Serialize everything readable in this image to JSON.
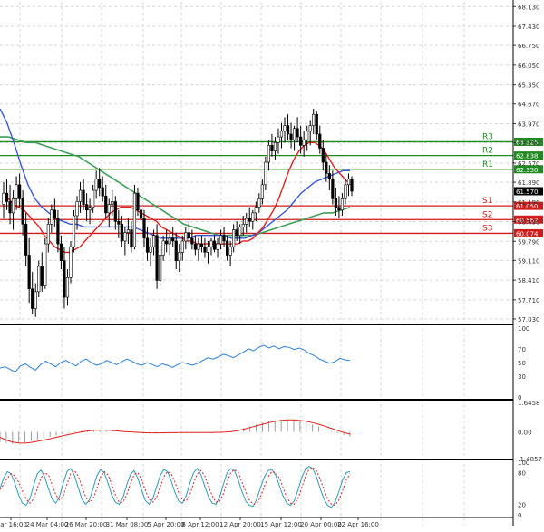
{
  "chart_data": {
    "type": "candlestick",
    "price_axis_labels": [
      "68.130",
      "67.430",
      "66.750",
      "66.050",
      "65.350",
      "64.670",
      "63.970",
      "63.290",
      "62.570",
      "61.890",
      "61.190",
      "60.490",
      "59.790",
      "59.110",
      "58.410",
      "57.710",
      "57.030"
    ],
    "time_labels": [
      "Mar 16:00",
      "24 Mar 04:00",
      "26 Mar 20:00",
      "31 Mar 08:00",
      "5 Apr 20:00",
      "8 Apr 12:00",
      "12 Apr 20:00",
      "15 Apr 12:00",
      "20 Apr 00:00",
      "22 Apr 16:00"
    ],
    "ylim": [
      56.9,
      68.3
    ],
    "current_price": {
      "label": "61.570",
      "value": 61.57
    },
    "levels": [
      {
        "name": "R3",
        "label": "63.326",
        "value": 63.326,
        "color": "#1f8a1f"
      },
      {
        "name": "R2",
        "label": "62.838",
        "value": 62.838,
        "color": "#1f8a1f"
      },
      {
        "name": "R1",
        "label": "62.350",
        "value": 62.35,
        "color": "#1f8a1f"
      },
      {
        "name": "S1",
        "label": "61.050",
        "value": 61.05,
        "color": "#d11a1a"
      },
      {
        "name": "S2",
        "label": "60.562",
        "value": 60.562,
        "color": "#d11a1a"
      },
      {
        "name": "S3",
        "label": "60.074",
        "value": 60.074,
        "color": "#d11a1a"
      }
    ],
    "candles_ohlc": [
      [
        61.1,
        61.9,
        60.6,
        61.5
      ],
      [
        61.5,
        62.0,
        60.9,
        61.2
      ],
      [
        61.2,
        61.8,
        60.4,
        60.8
      ],
      [
        60.8,
        61.6,
        60.2,
        61.3
      ],
      [
        61.3,
        62.1,
        60.9,
        61.8
      ],
      [
        61.8,
        62.2,
        61.0,
        61.3
      ],
      [
        61.3,
        61.6,
        60.0,
        60.4
      ],
      [
        60.4,
        60.8,
        58.9,
        59.3
      ],
      [
        59.3,
        59.9,
        57.6,
        58.1
      ],
      [
        58.1,
        58.7,
        57.2,
        57.4
      ],
      [
        57.4,
        58.3,
        57.1,
        58.0
      ],
      [
        58.0,
        59.1,
        57.8,
        58.9
      ],
      [
        58.9,
        59.4,
        58.0,
        58.2
      ],
      [
        58.2,
        59.9,
        58.1,
        59.7
      ],
      [
        59.7,
        60.6,
        59.4,
        60.4
      ],
      [
        60.4,
        61.1,
        60.1,
        60.9
      ],
      [
        60.9,
        61.3,
        60.3,
        60.6
      ],
      [
        60.6,
        60.9,
        59.4,
        59.7
      ],
      [
        59.7,
        60.0,
        58.8,
        59.1
      ],
      [
        59.1,
        59.6,
        57.4,
        57.8
      ],
      [
        57.8,
        58.8,
        57.5,
        58.5
      ],
      [
        58.5,
        59.8,
        58.3,
        59.6
      ],
      [
        59.6,
        60.9,
        59.4,
        60.7
      ],
      [
        60.7,
        61.4,
        60.2,
        61.2
      ],
      [
        61.2,
        61.9,
        60.8,
        61.6
      ],
      [
        61.6,
        62.0,
        60.9,
        61.1
      ],
      [
        61.1,
        61.5,
        60.5,
        60.9
      ],
      [
        60.9,
        61.3,
        60.4,
        61.0
      ],
      [
        61.0,
        61.8,
        60.8,
        61.6
      ],
      [
        61.6,
        62.3,
        61.3,
        62.0
      ],
      [
        62.0,
        62.4,
        61.4,
        61.7
      ],
      [
        61.7,
        62.1,
        61.2,
        61.4
      ],
      [
        61.4,
        61.8,
        60.6,
        60.8
      ],
      [
        60.8,
        61.3,
        60.3,
        61.1
      ],
      [
        61.1,
        61.6,
        60.7,
        61.2
      ],
      [
        61.2,
        61.4,
        60.2,
        60.5
      ],
      [
        60.5,
        60.9,
        59.9,
        60.4
      ],
      [
        60.4,
        60.7,
        59.6,
        59.8
      ],
      [
        59.8,
        60.3,
        59.3,
        60.1
      ],
      [
        60.1,
        60.6,
        59.7,
        60.2
      ],
      [
        60.2,
        60.5,
        59.4,
        59.6
      ],
      [
        59.6,
        61.8,
        59.5,
        61.5
      ],
      [
        61.5,
        61.7,
        60.7,
        60.9
      ],
      [
        60.9,
        61.3,
        60.4,
        60.6
      ],
      [
        60.6,
        60.9,
        59.6,
        59.9
      ],
      [
        59.9,
        60.3,
        59.1,
        59.4
      ],
      [
        59.4,
        59.9,
        58.9,
        59.6
      ],
      [
        59.6,
        60.2,
        59.3,
        60.0
      ],
      [
        60.0,
        60.4,
        58.1,
        58.4
      ],
      [
        58.4,
        59.6,
        58.2,
        59.3
      ],
      [
        59.3,
        60.0,
        59.1,
        59.8
      ],
      [
        59.8,
        60.2,
        59.4,
        59.7
      ],
      [
        59.7,
        60.1,
        59.3,
        59.9
      ],
      [
        59.9,
        60.3,
        59.6,
        59.8
      ],
      [
        59.8,
        60.1,
        58.8,
        59.1
      ],
      [
        59.1,
        59.7,
        58.7,
        59.4
      ],
      [
        59.4,
        60.0,
        59.1,
        59.8
      ],
      [
        59.8,
        60.3,
        59.5,
        60.1
      ],
      [
        60.1,
        60.5,
        59.7,
        59.9
      ],
      [
        59.9,
        60.2,
        59.5,
        59.7
      ],
      [
        59.7,
        60.0,
        59.3,
        59.5
      ],
      [
        59.5,
        59.9,
        59.1,
        59.7
      ],
      [
        59.7,
        60.0,
        59.4,
        59.6
      ],
      [
        59.6,
        59.9,
        59.2,
        59.4
      ],
      [
        59.4,
        59.8,
        59.0,
        59.6
      ],
      [
        59.6,
        59.9,
        59.3,
        59.8
      ],
      [
        59.8,
        60.0,
        59.4,
        59.5
      ],
      [
        59.5,
        59.9,
        59.2,
        59.7
      ],
      [
        59.7,
        60.2,
        59.5,
        60.0
      ],
      [
        60.0,
        60.3,
        59.6,
        59.8
      ],
      [
        59.8,
        60.0,
        59.1,
        59.3
      ],
      [
        59.3,
        59.8,
        58.9,
        59.6
      ],
      [
        59.6,
        60.4,
        59.4,
        60.2
      ],
      [
        60.2,
        60.5,
        59.8,
        60.0
      ],
      [
        60.0,
        60.4,
        59.7,
        60.3
      ],
      [
        60.3,
        60.7,
        60.0,
        60.4
      ],
      [
        60.4,
        60.8,
        60.1,
        60.6
      ],
      [
        60.6,
        61.0,
        60.3,
        60.5
      ],
      [
        60.5,
        60.9,
        60.2,
        60.8
      ],
      [
        60.8,
        61.2,
        60.5,
        61.0
      ],
      [
        61.0,
        61.5,
        60.8,
        61.3
      ],
      [
        61.3,
        62.0,
        61.1,
        61.8
      ],
      [
        61.8,
        62.8,
        61.6,
        62.6
      ],
      [
        62.6,
        63.4,
        62.3,
        63.2
      ],
      [
        63.2,
        63.6,
        62.8,
        63.0
      ],
      [
        63.0,
        63.5,
        62.7,
        63.3
      ],
      [
        63.3,
        63.8,
        62.9,
        63.5
      ],
      [
        63.5,
        64.0,
        63.1,
        63.7
      ],
      [
        63.7,
        64.2,
        63.3,
        63.9
      ],
      [
        63.9,
        64.3,
        63.4,
        63.6
      ],
      [
        63.6,
        64.0,
        63.1,
        63.4
      ],
      [
        63.4,
        63.9,
        63.0,
        63.8
      ],
      [
        63.8,
        64.2,
        63.3,
        63.5
      ],
      [
        63.5,
        63.9,
        62.9,
        63.2
      ],
      [
        63.2,
        63.7,
        62.8,
        63.4
      ],
      [
        63.4,
        63.9,
        63.0,
        63.7
      ],
      [
        63.7,
        64.1,
        63.2,
        63.9
      ],
      [
        63.9,
        64.5,
        63.6,
        64.3
      ],
      [
        64.3,
        64.4,
        63.4,
        63.6
      ],
      [
        63.6,
        63.9,
        62.9,
        63.1
      ],
      [
        63.1,
        63.4,
        62.3,
        62.6
      ],
      [
        62.6,
        62.9,
        61.9,
        62.2
      ],
      [
        62.2,
        62.5,
        61.6,
        62.0
      ],
      [
        62.0,
        62.3,
        61.1,
        61.3
      ],
      [
        61.3,
        61.7,
        60.7,
        61.0
      ],
      [
        61.0,
        61.4,
        60.6,
        60.9
      ],
      [
        60.9,
        61.5,
        60.7,
        61.3
      ],
      [
        61.3,
        62.0,
        61.1,
        61.8
      ],
      [
        61.8,
        62.2,
        61.4,
        62.0
      ],
      [
        62.0,
        62.1,
        61.4,
        61.57
      ]
    ],
    "sma_red": [
      61.5,
      61.3,
      61.1,
      61.0,
      60.9,
      60.7,
      60.5,
      60.3,
      60.0,
      59.8,
      59.6,
      59.5,
      59.4,
      59.4,
      59.5,
      59.6,
      59.8,
      60.0,
      60.2,
      60.4,
      60.6,
      60.8,
      60.9,
      61.0,
      61.0,
      61.0,
      60.9,
      60.8,
      60.7,
      60.6,
      60.5,
      60.3,
      60.2,
      60.1,
      60.0,
      59.9,
      59.8,
      59.8,
      59.7,
      59.7,
      59.7,
      59.7,
      59.7,
      59.7,
      59.7,
      59.7,
      59.7,
      59.8,
      59.8,
      59.9,
      60.1,
      60.3,
      60.6,
      60.9,
      61.3,
      61.8,
      62.3,
      62.7,
      63.0,
      63.2,
      63.3,
      63.3,
      63.2,
      63.0,
      62.7,
      62.4,
      62.2,
      62.0,
      61.8
    ],
    "ema_blue": [
      64.5,
      64.0,
      63.3,
      62.5,
      61.8,
      61.3,
      61.0,
      60.8,
      60.6,
      60.5,
      60.4,
      60.4,
      60.3,
      60.3,
      60.3,
      60.3,
      60.3,
      60.3,
      60.3,
      60.3,
      60.2,
      60.1,
      60.0,
      59.9,
      59.9,
      59.9,
      59.9,
      59.9,
      60.0,
      60.0,
      60.0,
      60.0,
      60.0,
      59.9,
      59.9,
      59.9,
      60.0,
      60.1,
      60.3,
      60.5,
      60.7,
      60.9,
      61.2,
      61.5,
      61.7,
      61.9,
      62.0,
      62.1,
      62.2,
      62.3,
      62.3
    ],
    "sma_green": [
      63.5,
      63.5,
      63.4,
      63.3,
      63.3,
      63.2,
      63.1,
      63.0,
      62.9,
      62.8,
      62.6,
      62.4,
      62.2,
      62.0,
      61.8,
      61.6,
      61.4,
      61.2,
      61.0,
      60.8,
      60.6,
      60.4,
      60.3,
      60.2,
      60.1,
      60.0,
      60.0,
      60.0,
      60.0,
      60.0,
      60.1,
      60.2,
      60.3,
      60.4,
      60.5,
      60.6,
      60.7,
      60.8,
      60.8,
      60.9,
      61.0
    ],
    "rsi_panel": {
      "labels": [
        "100",
        "70",
        "50",
        "30",
        "0"
      ],
      "ylim": [
        0,
        100
      ],
      "values": [
        42,
        44,
        40,
        36,
        45,
        48,
        43,
        39,
        47,
        52,
        48,
        44,
        50,
        53,
        49,
        45,
        52,
        55,
        50,
        46,
        48,
        53,
        50,
        47,
        51,
        55,
        52,
        48,
        46,
        50,
        47,
        44,
        48,
        46,
        43,
        47,
        50,
        48,
        46,
        49,
        53,
        57,
        55,
        58,
        62,
        60,
        57,
        61,
        65,
        70,
        67,
        72,
        75,
        71,
        74,
        70,
        73,
        72,
        69,
        71,
        68,
        63,
        60,
        55,
        52,
        49,
        51,
        56,
        54,
        53
      ]
    },
    "macd_panel": {
      "labels": [
        "1.6458",
        "0.00",
        "-1.4857"
      ],
      "ylim": [
        -1.4857,
        1.6458
      ],
      "histogram": [
        -0.55,
        -0.62,
        -0.66,
        -0.63,
        -0.58,
        -0.5,
        -0.42,
        -0.35,
        -0.28,
        -0.2,
        -0.12,
        -0.05,
        0.02,
        0.06,
        0.1,
        0.12,
        0.11,
        0.08,
        0.05,
        0.02,
        -0.01,
        -0.03,
        -0.05,
        -0.06,
        -0.06,
        -0.05,
        -0.04,
        -0.03,
        -0.03,
        -0.02,
        -0.02,
        -0.03,
        -0.04,
        -0.04,
        -0.03,
        -0.02,
        0.0,
        0.05,
        0.12,
        0.22,
        0.32,
        0.42,
        0.52,
        0.6,
        0.66,
        0.7,
        0.7,
        0.66,
        0.6,
        0.52,
        0.42,
        0.3,
        0.18,
        0.05,
        -0.08,
        -0.18,
        -0.25
      ],
      "signal": [
        -0.3,
        -0.45,
        -0.56,
        -0.61,
        -0.62,
        -0.58,
        -0.52,
        -0.45,
        -0.38,
        -0.3,
        -0.22,
        -0.14,
        -0.07,
        0.0,
        0.05,
        0.09,
        0.1,
        0.1,
        0.08,
        0.05,
        0.02,
        0.0,
        -0.02,
        -0.04,
        -0.05,
        -0.05,
        -0.05,
        -0.04,
        -0.04,
        -0.03,
        -0.03,
        -0.03,
        -0.03,
        -0.03,
        -0.03,
        -0.02,
        -0.01,
        0.02,
        0.07,
        0.15,
        0.24,
        0.34,
        0.43,
        0.52,
        0.59,
        0.64,
        0.67,
        0.67,
        0.64,
        0.59,
        0.52,
        0.43,
        0.32,
        0.2,
        0.08,
        -0.03,
        -0.12
      ]
    },
    "stoch_panel": {
      "labels": [
        "100",
        "80",
        "20",
        "0"
      ],
      "ylim": [
        0,
        100
      ],
      "k": [
        50,
        70,
        82,
        78,
        60,
        38,
        22,
        18,
        30,
        55,
        78,
        85,
        72,
        50,
        30,
        22,
        35,
        60,
        82,
        88,
        75,
        52,
        30,
        20,
        28,
        50,
        74,
        86,
        80,
        60,
        38,
        24,
        20,
        32,
        56,
        76,
        84,
        70,
        48,
        28,
        20,
        30,
        52,
        74,
        86,
        82,
        64,
        42,
        26,
        22,
        36,
        60,
        80,
        88,
        76,
        54,
        34,
        22,
        20,
        34,
        58,
        80,
        88,
        84,
        66,
        44,
        26,
        18,
        16,
        30,
        52,
        72,
        84,
        86,
        76,
        56,
        36,
        22,
        18,
        26,
        46,
        70,
        86,
        92,
        88,
        72,
        50,
        30,
        18,
        14,
        24,
        44,
        66,
        80,
        82
      ],
      "d": [
        48,
        58,
        70,
        78,
        74,
        62,
        46,
        30,
        22,
        30,
        50,
        70,
        80,
        76,
        58,
        38,
        28,
        36,
        58,
        78,
        84,
        74,
        54,
        34,
        24,
        30,
        50,
        72,
        82,
        76,
        58,
        38,
        24,
        24,
        38,
        58,
        76,
        80,
        68,
        48,
        30,
        24,
        32,
        52,
        72,
        82,
        78,
        62,
        42,
        28,
        26,
        38,
        60,
        78,
        84,
        74,
        54,
        36,
        24,
        26,
        40,
        62,
        80,
        86,
        80,
        62,
        44,
        28,
        20,
        22,
        34,
        54,
        72,
        82,
        80,
        70,
        52,
        34,
        22,
        20,
        30,
        50,
        72,
        86,
        90,
        84,
        68,
        48,
        30,
        20,
        18,
        28,
        46,
        66,
        78
      ]
    }
  }
}
